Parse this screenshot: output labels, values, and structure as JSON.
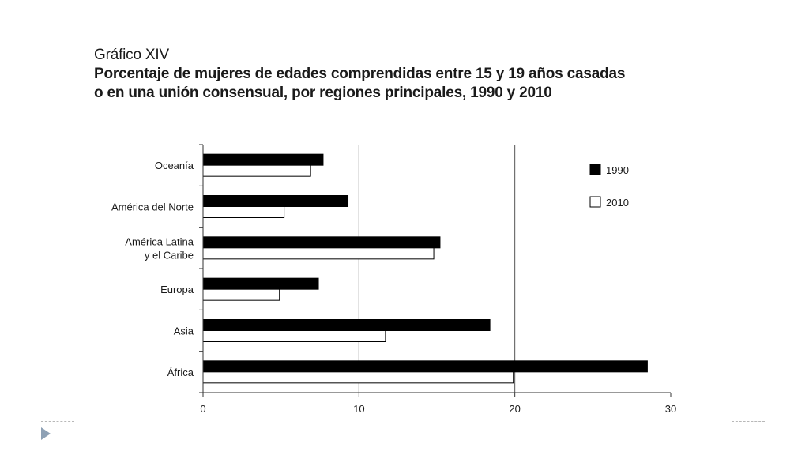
{
  "header": {
    "label": "Gráfico XIV",
    "title_line1": "Porcentaje de mujeres de edades comprendidas entre 15 y 19 años casadas",
    "title_line2": "o en una unión consensual, por regiones principales, 1990 y 2010"
  },
  "chart_data": {
    "type": "bar",
    "orientation": "horizontal",
    "categories": [
      [
        "Oceanía"
      ],
      [
        "América del Norte"
      ],
      [
        "América Latina",
        "y el Caribe"
      ],
      [
        "Europa"
      ],
      [
        "Asia"
      ],
      [
        "África"
      ]
    ],
    "series": [
      {
        "name": "1990",
        "color": "#000000",
        "values": [
          7.7,
          9.3,
          15.2,
          7.4,
          18.4,
          28.5
        ]
      },
      {
        "name": "2010",
        "color": "#ffffff",
        "values": [
          6.9,
          5.2,
          14.8,
          4.9,
          11.7,
          19.9
        ]
      }
    ],
    "xlim": [
      0,
      30
    ],
    "xticks": [
      0,
      10,
      20,
      30
    ],
    "gridlines": [
      10,
      20
    ],
    "legend_position": "top-right"
  }
}
